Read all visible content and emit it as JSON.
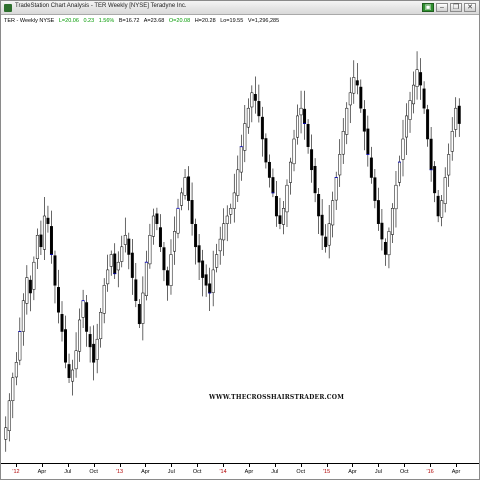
{
  "window": {
    "title": "TradeStation Chart Analysis - TER Weekly [NYSE] Teradyne Inc.",
    "buttons": [
      {
        "name": "green-app-button",
        "label": "▣"
      },
      {
        "name": "minimize-button",
        "label": "–"
      },
      {
        "name": "restore-button",
        "label": "❐"
      },
      {
        "name": "close-button",
        "label": "✕"
      }
    ]
  },
  "symbol_bar": {
    "symbol": "TER - Weekly  NYSE",
    "last": "L=20.06",
    "change": "0.23",
    "change_pct": "1.56%",
    "bid": "B=16.72",
    "ask": "A=23.68",
    "open": "O=20.08",
    "high": "H=20.28",
    "low": "Lo=19.55",
    "volume": "V=1,296,285"
  },
  "watermark": "WWW.THECROSSHAIRSTRADER.COM",
  "colors": {
    "up": "#ffffff",
    "down": "#000000",
    "wick": "#000000",
    "marker": "#0000cc",
    "year_label": "#b00000"
  },
  "chart_data": {
    "type": "candlestick",
    "title": "",
    "ylabel": "",
    "ylim": [
      0,
      100
    ],
    "x_tick_labels": [
      "'12",
      "Apr",
      "Jul",
      "Oct",
      "'13",
      "Apr",
      "Jul",
      "Oct",
      "'14",
      "Apr",
      "Jul",
      "Oct",
      "'15",
      "Apr",
      "Jul",
      "Oct",
      "'16",
      "Apr"
    ],
    "year_labels": [
      "'12",
      "'13",
      "'14",
      "'15",
      "'16"
    ],
    "approx_closes_percent_of_range": [
      5,
      12,
      18,
      22,
      30,
      38,
      44,
      40,
      48,
      55,
      52,
      60,
      58,
      50,
      42,
      35,
      30,
      22,
      18,
      20,
      25,
      33,
      38,
      30,
      26,
      22,
      28,
      35,
      42,
      46,
      50,
      45,
      48,
      52,
      55,
      50,
      44,
      38,
      32,
      40,
      48,
      55,
      60,
      58,
      52,
      46,
      42,
      50,
      56,
      62,
      66,
      70,
      64,
      58,
      52,
      48,
      44,
      42,
      40,
      46,
      50,
      54,
      58,
      60,
      62,
      66,
      72,
      78,
      84,
      88,
      92,
      90,
      86,
      80,
      74,
      70,
      66,
      60,
      58,
      62,
      68,
      74,
      80,
      86,
      88,
      84,
      78,
      72,
      66,
      60,
      55,
      52,
      58,
      64,
      70,
      76,
      82,
      88,
      92,
      96,
      94,
      88,
      82,
      76,
      70,
      64,
      58,
      54,
      50,
      56,
      62,
      68,
      74,
      80,
      86,
      90,
      94,
      98,
      94,
      88,
      80,
      72,
      66,
      60,
      64,
      70,
      76,
      82,
      88,
      84
    ]
  }
}
